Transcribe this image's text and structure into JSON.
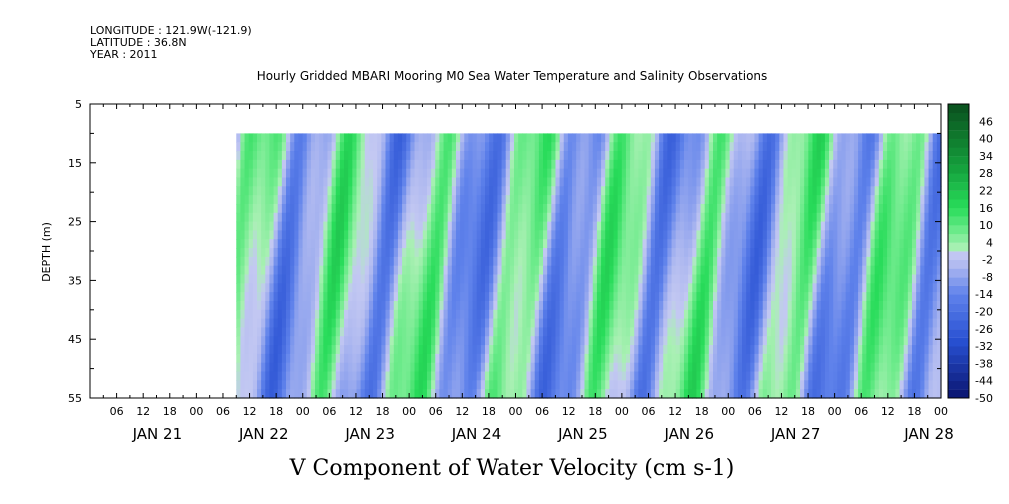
{
  "header": {
    "longitude": "LONGITUDE : 121.9W(-121.9)",
    "latitude": "LATITUDE : 36.8N",
    "year": "YEAR : 2011"
  },
  "chart_data": {
    "type": "heatmap",
    "title": "Hourly Gridded MBARI Mooring M0 Sea Water Temperature and Salinity Observations",
    "xlabel": "V Component of Water Velocity (cm s-1)",
    "ylabel": "DEPTH (m)",
    "y_axis": {
      "ticks": [
        5,
        15,
        25,
        35,
        45,
        55
      ],
      "range": [
        5,
        55
      ],
      "inverted": true,
      "data_depth_range": [
        10,
        55
      ]
    },
    "x_axis": {
      "start": "2011-01-20T00:00",
      "end": "2011-01-28T00:00",
      "data_start": "2011-01-21T09:00",
      "data_end": "2011-01-28T00:00",
      "hour_ticks": [
        "06",
        "12",
        "18",
        "00",
        "06",
        "12",
        "18",
        "00",
        "06",
        "12",
        "18",
        "00",
        "06",
        "12",
        "18",
        "00",
        "06",
        "12",
        "18",
        "00",
        "06",
        "12",
        "18",
        "00",
        "06",
        "12",
        "18",
        "00",
        "06",
        "12",
        "18",
        "00"
      ],
      "day_labels": [
        "JAN 21",
        "JAN 22",
        "JAN 23",
        "JAN 24",
        "JAN 25",
        "JAN 26",
        "JAN 27",
        "JAN 28"
      ]
    },
    "colorbar": {
      "labels": [
        "46",
        "40",
        "34",
        "28",
        "22",
        "16",
        "10",
        "4",
        "-2",
        "-8",
        "-14",
        "-20",
        "-26",
        "-32",
        "-38",
        "-44",
        "-50"
      ],
      "range": [
        -50,
        52
      ],
      "step": 3,
      "colors": {
        "strong_negative": "#0a1a7a",
        "negative": "#2f5fe0",
        "weak_negative": "#aab4f0",
        "weak_positive": "#a8f0b0",
        "positive": "#22dd55",
        "strong_positive": "#0a5a20"
      }
    },
    "dominant_values": {
      "typical_range": [
        -20,
        16
      ]
    }
  }
}
